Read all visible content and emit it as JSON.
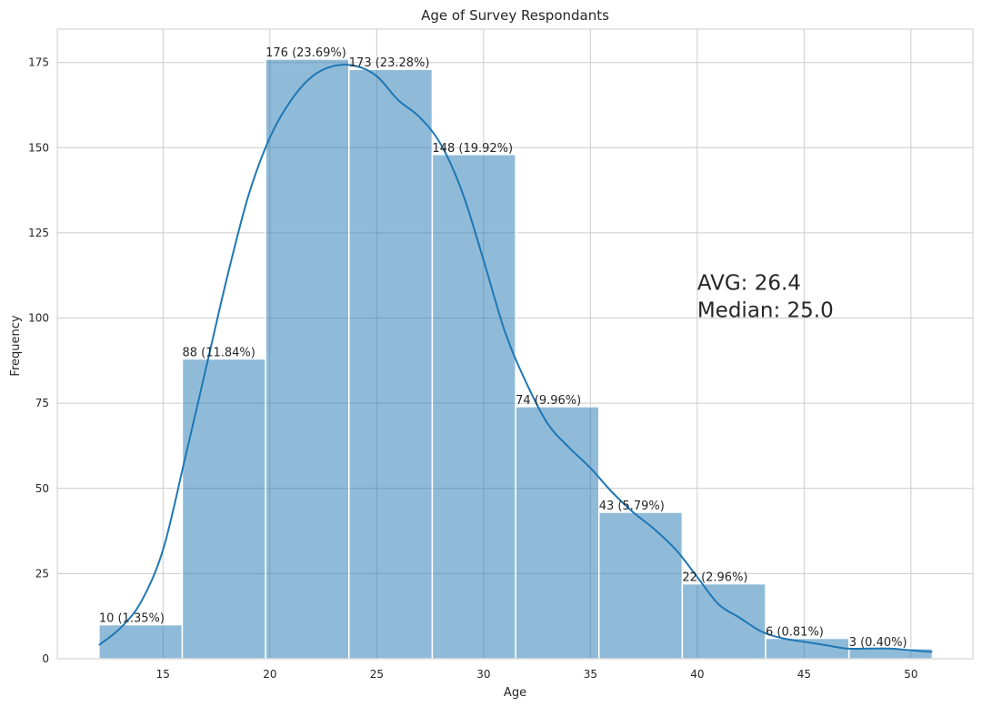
{
  "chart_data": {
    "type": "bar",
    "subtype": "histogram-with-kde",
    "title": "Age of Survey Respondants",
    "xlabel": "Age",
    "ylabel": "Frequency",
    "xlim": [
      10.05,
      52.9
    ],
    "ylim": [
      0,
      184.8
    ],
    "xticks": [
      15,
      20,
      25,
      30,
      35,
      40,
      45,
      50
    ],
    "yticks": [
      0,
      25,
      50,
      75,
      100,
      125,
      150,
      175
    ],
    "grid": true,
    "bins": [
      {
        "start": 12.0,
        "end": 15.9,
        "value": 10,
        "label": "10 (1.35%)"
      },
      {
        "start": 15.9,
        "end": 19.8,
        "value": 88,
        "label": "88 (11.84%)"
      },
      {
        "start": 19.8,
        "end": 23.7,
        "value": 176,
        "label": "176 (23.69%)"
      },
      {
        "start": 23.7,
        "end": 27.6,
        "value": 173,
        "label": "173 (23.28%)"
      },
      {
        "start": 27.6,
        "end": 31.5,
        "value": 148,
        "label": "148 (19.92%)"
      },
      {
        "start": 31.5,
        "end": 35.4,
        "value": 74,
        "label": "74 (9.96%)"
      },
      {
        "start": 35.4,
        "end": 39.3,
        "value": 43,
        "label": "43 (5.79%)"
      },
      {
        "start": 39.3,
        "end": 43.2,
        "value": 22,
        "label": "22 (2.96%)"
      },
      {
        "start": 43.2,
        "end": 47.1,
        "value": 6,
        "label": "6 (0.81%)"
      },
      {
        "start": 47.1,
        "end": 51.0,
        "value": 3,
        "label": "3 (0.40%)"
      }
    ],
    "kde": [
      [
        12.0,
        4
      ],
      [
        13.0,
        9
      ],
      [
        14.0,
        17
      ],
      [
        15.0,
        32
      ],
      [
        16.0,
        58
      ],
      [
        17.0,
        85
      ],
      [
        18.0,
        112
      ],
      [
        19.0,
        136
      ],
      [
        20.0,
        153
      ],
      [
        21.0,
        164
      ],
      [
        22.0,
        171
      ],
      [
        23.0,
        174
      ],
      [
        24.0,
        174
      ],
      [
        25.0,
        171
      ],
      [
        26.0,
        164
      ],
      [
        27.0,
        159
      ],
      [
        28.0,
        151
      ],
      [
        29.0,
        137
      ],
      [
        30.0,
        117
      ],
      [
        31.0,
        96
      ],
      [
        32.0,
        81
      ],
      [
        33.0,
        69
      ],
      [
        34.0,
        62
      ],
      [
        35.0,
        56
      ],
      [
        36.0,
        49
      ],
      [
        37.0,
        43
      ],
      [
        38.0,
        38
      ],
      [
        39.0,
        32
      ],
      [
        40.0,
        24
      ],
      [
        41.0,
        16
      ],
      [
        42.0,
        12
      ],
      [
        43.0,
        8
      ],
      [
        44.0,
        6
      ],
      [
        45.0,
        5
      ],
      [
        46.0,
        4
      ],
      [
        47.0,
        3
      ],
      [
        48.0,
        3
      ],
      [
        49.0,
        3
      ],
      [
        50.0,
        2.5
      ],
      [
        51.0,
        2
      ]
    ],
    "annotations": {
      "avg": "AVG: 26.4",
      "median": "Median: 25.0",
      "position": {
        "x": 40,
        "y": 100
      }
    }
  }
}
